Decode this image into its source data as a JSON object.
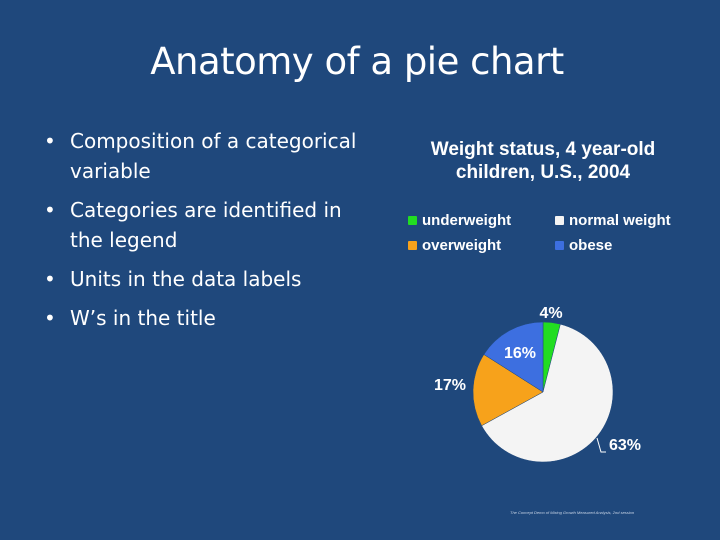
{
  "slide": {
    "title": "Anatomy of a pie chart",
    "bullets": [
      "Composition of a categorical variable",
      "Categories are identified in the legend",
      "Units in the data labels",
      "W’s in the title"
    ],
    "credit": "The Concept Demo of Mixing Growth Measured Analysis, 2nd session"
  },
  "chart_data": {
    "type": "pie",
    "title": "Weight status, 4 year-old children, U.S., 2004",
    "categories": [
      "underweight",
      "normal weight",
      "overweight",
      "obese"
    ],
    "values": [
      4,
      63,
      17,
      16
    ],
    "unit": "%",
    "data_labels": [
      "4%",
      "63%",
      "17%",
      "16%"
    ],
    "colors": {
      "underweight": "#22dd22",
      "normal weight": "#f4f4f4",
      "overweight": "#f7a21b",
      "obese": "#3d6fe0"
    },
    "legend_position": "top"
  }
}
